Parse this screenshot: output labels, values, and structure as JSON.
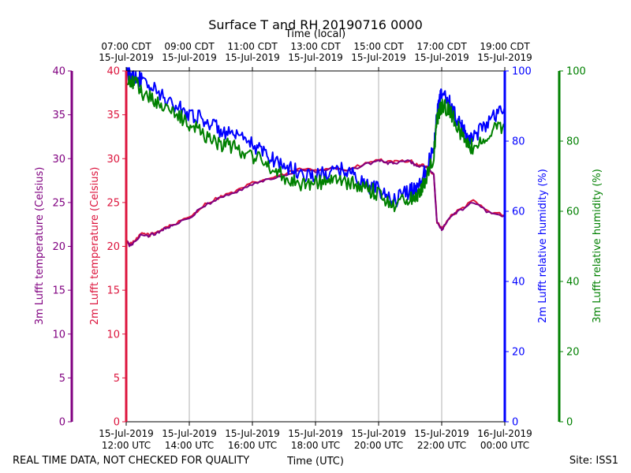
{
  "chart_data": {
    "type": "line",
    "title": "Surface T and RH 20190716 0000",
    "top_xlabel": "Time (local)",
    "xlabel": "Time (UTC)",
    "footer_left": "REAL TIME DATA, NOT CHECKED FOR QUALITY",
    "footer_right": "Site: ISS1",
    "xlim": [
      12,
      24
    ],
    "x_ticks": [
      12,
      14,
      16,
      18,
      20,
      22,
      24
    ],
    "utc_tick_labels": [
      [
        "15-Jul-2019",
        "12:00 UTC"
      ],
      [
        "15-Jul-2019",
        "14:00 UTC"
      ],
      [
        "15-Jul-2019",
        "16:00 UTC"
      ],
      [
        "15-Jul-2019",
        "18:00 UTC"
      ],
      [
        "15-Jul-2019",
        "20:00 UTC"
      ],
      [
        "15-Jul-2019",
        "22:00 UTC"
      ],
      [
        "16-Jul-2019",
        "00:00 UTC"
      ]
    ],
    "local_tick_labels": [
      [
        "07:00 CDT",
        "15-Jul-2019"
      ],
      [
        "09:00 CDT",
        "15-Jul-2019"
      ],
      [
        "11:00 CDT",
        "15-Jul-2019"
      ],
      [
        "13:00 CDT",
        "15-Jul-2019"
      ],
      [
        "15:00 CDT",
        "15-Jul-2019"
      ],
      [
        "17:00 CDT",
        "15-Jul-2019"
      ],
      [
        "19:00 CDT",
        "15-Jul-2019"
      ]
    ],
    "grid": "vertical",
    "axes": {
      "temp3m": {
        "label": "3m Lufft temperature (Celsius)",
        "ylim": [
          0,
          40
        ],
        "ticks": [
          0,
          5,
          10,
          15,
          20,
          25,
          30,
          35,
          40
        ],
        "color": "#800080"
      },
      "temp2m": {
        "label": "2m Lufft temperature (Celsius)",
        "ylim": [
          0,
          40
        ],
        "ticks": [
          0,
          5,
          10,
          15,
          20,
          25,
          30,
          35,
          40
        ],
        "color": "#dc143c"
      },
      "rh2m": {
        "label": "2m Lufft relative humidity (%)",
        "ylim": [
          0,
          100
        ],
        "ticks": [
          0,
          20,
          40,
          60,
          80,
          100
        ],
        "color": "#0000ff"
      },
      "rh3m": {
        "label": "3m Lufft relative humidity (%)",
        "ylim": [
          0,
          100
        ],
        "ticks": [
          0,
          20,
          40,
          60,
          80,
          100
        ],
        "color": "#008000"
      }
    },
    "series": [
      {
        "name": "2m Lufft temperature",
        "axis": "temp2m",
        "color": "#dc143c",
        "x": [
          12,
          12.1,
          12.25,
          12.5,
          12.75,
          13,
          13.25,
          13.5,
          14,
          14.5,
          15,
          15.5,
          16,
          16.5,
          17,
          17.5,
          18,
          18.5,
          19,
          19.5,
          20,
          20.25,
          20.5,
          21,
          21.25,
          21.5,
          21.75,
          21.85,
          22,
          22.25,
          22.5,
          23,
          23.5,
          24
        ],
        "values": [
          20.8,
          20.2,
          20.5,
          21.5,
          21.3,
          21.7,
          22.2,
          22.5,
          23.3,
          24.8,
          25.7,
          26.3,
          27.2,
          27.7,
          28.2,
          28.8,
          28.7,
          29.0,
          28.7,
          29.3,
          29.9,
          29.6,
          29.6,
          29.8,
          29.2,
          29.2,
          28.2,
          22.8,
          22.0,
          23.3,
          24.0,
          25.2,
          23.9,
          23.6
        ]
      },
      {
        "name": "3m Lufft temperature",
        "axis": "temp3m",
        "color": "#800080",
        "x": [
          12,
          12.1,
          12.25,
          12.5,
          12.75,
          13,
          13.25,
          13.5,
          14,
          14.5,
          15,
          15.5,
          16,
          16.5,
          17,
          17.5,
          18,
          18.5,
          19,
          19.5,
          20,
          20.25,
          20.5,
          21,
          21.25,
          21.5,
          21.75,
          21.85,
          22,
          22.25,
          22.5,
          23,
          23.5,
          24
        ],
        "values": [
          20.7,
          20.1,
          20.4,
          21.4,
          21.2,
          21.6,
          22.1,
          22.4,
          23.2,
          24.7,
          25.6,
          26.2,
          27.1,
          27.6,
          28.1,
          28.7,
          28.6,
          28.9,
          28.6,
          29.2,
          29.8,
          29.5,
          29.5,
          29.7,
          29.1,
          29.1,
          28.1,
          22.7,
          21.9,
          23.2,
          23.9,
          25.1,
          23.8,
          23.5
        ]
      },
      {
        "name": "2m Lufft relative humidity",
        "axis": "rh2m",
        "color": "#0000ff",
        "x": [
          12,
          12.25,
          12.5,
          13,
          13.5,
          14,
          14.5,
          15,
          15.5,
          16,
          16.5,
          17,
          17.5,
          18,
          18.5,
          19,
          19.5,
          20,
          20.5,
          21,
          21.25,
          21.5,
          21.75,
          21.85,
          22,
          22.25,
          22.5,
          22.75,
          23,
          23.5,
          24
        ],
        "values": [
          99,
          99,
          97,
          94,
          90,
          88,
          86,
          83,
          81,
          79,
          76,
          73,
          71,
          70,
          71,
          72,
          68,
          66,
          63,
          66,
          67,
          72,
          78,
          88,
          94,
          91,
          86,
          82,
          81,
          86,
          90
        ]
      },
      {
        "name": "3m Lufft relative humidity",
        "axis": "rh3m",
        "color": "#008000",
        "x": [
          12,
          12.25,
          12.5,
          13,
          13.5,
          14,
          14.5,
          15,
          15.5,
          16,
          16.5,
          17,
          17.5,
          18,
          18.5,
          19,
          19.5,
          20,
          20.5,
          21,
          21.25,
          21.5,
          21.75,
          21.85,
          22,
          22.25,
          22.5,
          22.75,
          23,
          23.5,
          24
        ],
        "values": [
          96,
          97,
          94,
          91,
          88,
          85,
          82,
          79,
          78,
          76,
          73,
          70,
          68,
          68,
          69,
          68,
          67,
          65,
          62,
          64,
          65,
          69,
          76,
          86,
          90,
          89,
          84,
          80,
          78,
          82,
          85
        ]
      }
    ]
  }
}
